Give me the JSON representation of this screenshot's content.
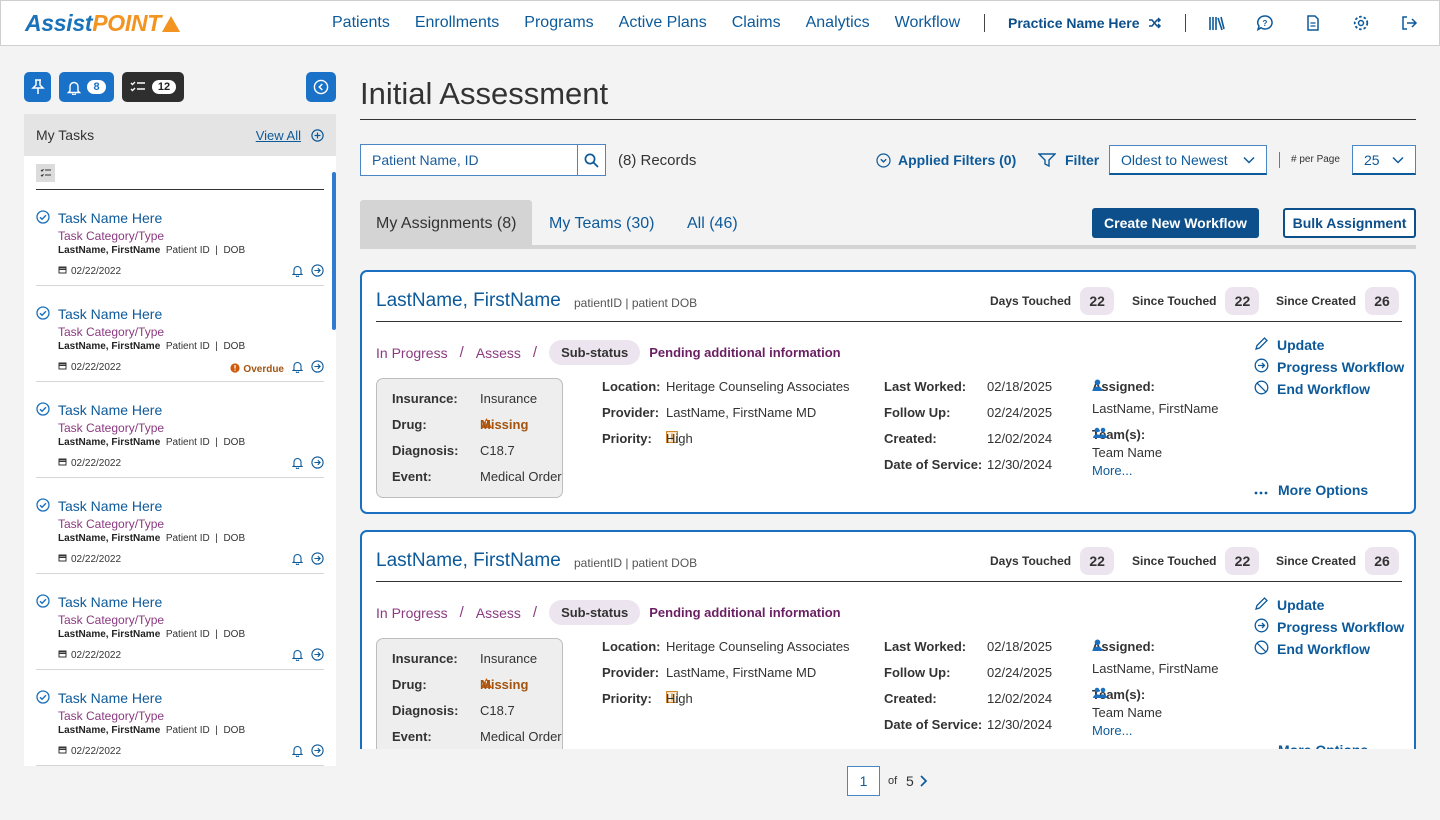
{
  "app": {
    "logo_a": "Assist",
    "logo_b": "POINT"
  },
  "nav": {
    "links": [
      "Patients",
      "Enrollments",
      "Programs",
      "Active Plans",
      "Claims",
      "Analytics",
      "Workflow"
    ],
    "practice": "Practice Name Here",
    "icons": [
      "library-icon",
      "help-icon",
      "document-icon",
      "settings-icon",
      "logout-icon"
    ]
  },
  "sidebar": {
    "notif_count": "8",
    "task_count": "12",
    "title": "My Tasks",
    "view_all": "View All",
    "tasks": [
      {
        "name": "Task Name Here",
        "category": "Task Category/Type",
        "patient": "LastName, FirstName",
        "meta": "Patient ID  |  DOB",
        "date": "02/22/2022",
        "overdue": ""
      },
      {
        "name": "Task Name Here",
        "category": "Task Category/Type",
        "patient": "LastName, FirstName",
        "meta": "Patient ID  |  DOB",
        "date": "02/22/2022",
        "overdue": "Overdue"
      },
      {
        "name": "Task Name Here",
        "category": "Task Category/Type",
        "patient": "LastName, FirstName",
        "meta": "Patient ID  |  DOB",
        "date": "02/22/2022",
        "overdue": ""
      },
      {
        "name": "Task Name Here",
        "category": "Task Category/Type",
        "patient": "LastName, FirstName",
        "meta": "Patient ID  |  DOB",
        "date": "02/22/2022",
        "overdue": ""
      },
      {
        "name": "Task Name Here",
        "category": "Task Category/Type",
        "patient": "LastName, FirstName",
        "meta": "Patient ID  |  DOB",
        "date": "02/22/2022",
        "overdue": ""
      },
      {
        "name": "Task Name Here",
        "category": "Task Category/Type",
        "patient": "LastName, FirstName",
        "meta": "Patient ID  |  DOB",
        "date": "02/22/2022",
        "overdue": ""
      }
    ]
  },
  "main": {
    "title": "Initial Assessment",
    "search_placeholder": "Patient Name, ID",
    "records": "(8) Records",
    "applied_filters": "Applied Filters (0)",
    "filter": "Filter",
    "sort": "Oldest to Newest",
    "per_page_label": "# per Page",
    "per_page": "25",
    "tabs": [
      "My Assignments (8)",
      "My Teams (30)",
      "All (46)"
    ],
    "create_btn": "Create New Workflow",
    "bulk_btn": "Bulk Assignment"
  },
  "cards": [
    {
      "name": "LastName, FirstName",
      "id": "patientID | patient DOB",
      "metrics": [
        {
          "label": "Days Touched",
          "value": "22"
        },
        {
          "label": "Since Touched",
          "value": "22"
        },
        {
          "label": "Since Created",
          "value": "26"
        }
      ],
      "status": "In Progress",
      "stage": "Assess",
      "substatus_label": "Sub-status",
      "substatus": "Pending additional information",
      "insurance_label": "Insurance:",
      "insurance": "Insurance",
      "drug_label": "Drug:",
      "drug": "Missing",
      "diagnosis_label": "Diagnosis:",
      "diagnosis": "C18.7",
      "event_label": "Event:",
      "event": "Medical Order",
      "location_label": "Location:",
      "location": "Heritage Counseling Associates",
      "provider_label": "Provider:",
      "provider": "LastName, FirstName MD",
      "priority_label": "Priority:",
      "priority": "High",
      "lastworked_label": "Last Worked:",
      "lastworked": "02/18/2025",
      "followup_label": "Follow Up:",
      "followup": "02/24/2025",
      "created_label": "Created:",
      "created": "12/02/2024",
      "dos_label": "Date of Service:",
      "dos": "12/30/2024",
      "assigned_label": "Assigned:",
      "assigned": "LastName, FirstName",
      "teams_label": "Team(s):",
      "team": "Team Name",
      "more": "More...",
      "actions": [
        "Update",
        "Progress Workflow",
        "End Workflow"
      ],
      "more_options": "More Options"
    },
    {
      "name": "LastName, FirstName",
      "id": "patientID | patient DOB",
      "metrics": [
        {
          "label": "Days Touched",
          "value": "22"
        },
        {
          "label": "Since Touched",
          "value": "22"
        },
        {
          "label": "Since Created",
          "value": "26"
        }
      ],
      "status": "In Progress",
      "stage": "Assess",
      "substatus_label": "Sub-status",
      "substatus": "Pending additional information",
      "insurance_label": "Insurance:",
      "insurance": "Insurance",
      "drug_label": "Drug:",
      "drug": "Missing",
      "diagnosis_label": "Diagnosis:",
      "diagnosis": "C18.7",
      "event_label": "Event:",
      "event": "Medical Order",
      "location_label": "Location:",
      "location": "Heritage Counseling Associates",
      "provider_label": "Provider:",
      "provider": "LastName, FirstName MD",
      "priority_label": "Priority:",
      "priority": "High",
      "lastworked_label": "Last Worked:",
      "lastworked": "02/18/2025",
      "followup_label": "Follow Up:",
      "followup": "02/24/2025",
      "created_label": "Created:",
      "created": "12/02/2024",
      "dos_label": "Date of Service:",
      "dos": "12/30/2024",
      "assigned_label": "Assigned:",
      "assigned": "LastName, FirstName",
      "teams_label": "Team(s):",
      "team": "Team Name",
      "more": "More...",
      "actions": [
        "Update",
        "Progress Workflow",
        "End Workflow"
      ],
      "more_options": "More Options"
    }
  ],
  "pager": {
    "current": "1",
    "of": "of",
    "total": "5"
  },
  "colors": {
    "primary": "#0d5a9a",
    "dark_primary": "#0d4f8a",
    "accent_orange": "#f39320",
    "purple": "#8a3b80",
    "warning": "#a25410"
  }
}
